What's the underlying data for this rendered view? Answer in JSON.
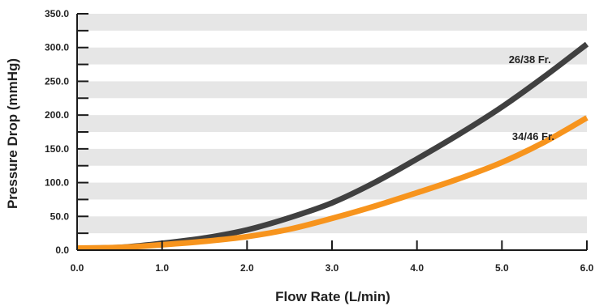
{
  "chart_data": {
    "type": "line",
    "xlabel": "Flow Rate (L/min)",
    "ylabel": "Pressure Drop (mmHg)",
    "xlim": [
      0,
      6
    ],
    "ylim": [
      0,
      350
    ],
    "x_ticks": [
      "0.0",
      "1.0",
      "2.0",
      "3.0",
      "4.0",
      "5.0",
      "6.0"
    ],
    "y_ticks": [
      "0.0",
      "50.0",
      "100.0",
      "150.0",
      "200.0",
      "250.0",
      "300.0",
      "350.0"
    ],
    "grid": "alternating horizontal bands",
    "colors": {
      "band": "#e6e6e6",
      "axis": "#1a1a1a"
    },
    "series": [
      {
        "name": "26/38 Fr.",
        "color": "#404040",
        "x": [
          0,
          0.5,
          1,
          1.5,
          2,
          2.5,
          3,
          3.5,
          4,
          4.5,
          5,
          5.5,
          6
        ],
        "y": [
          3,
          4,
          10,
          18,
          30,
          48,
          70,
          100,
          135,
          172,
          212,
          257,
          305
        ]
      },
      {
        "name": "34/46 Fr.",
        "color": "#f7941d",
        "x": [
          0,
          0.5,
          1,
          1.5,
          2,
          2.5,
          3,
          3.5,
          4,
          4.5,
          5,
          5.5,
          6
        ],
        "y": [
          3,
          4,
          8,
          13,
          20,
          31,
          47,
          65,
          85,
          106,
          130,
          160,
          196
        ]
      }
    ]
  }
}
